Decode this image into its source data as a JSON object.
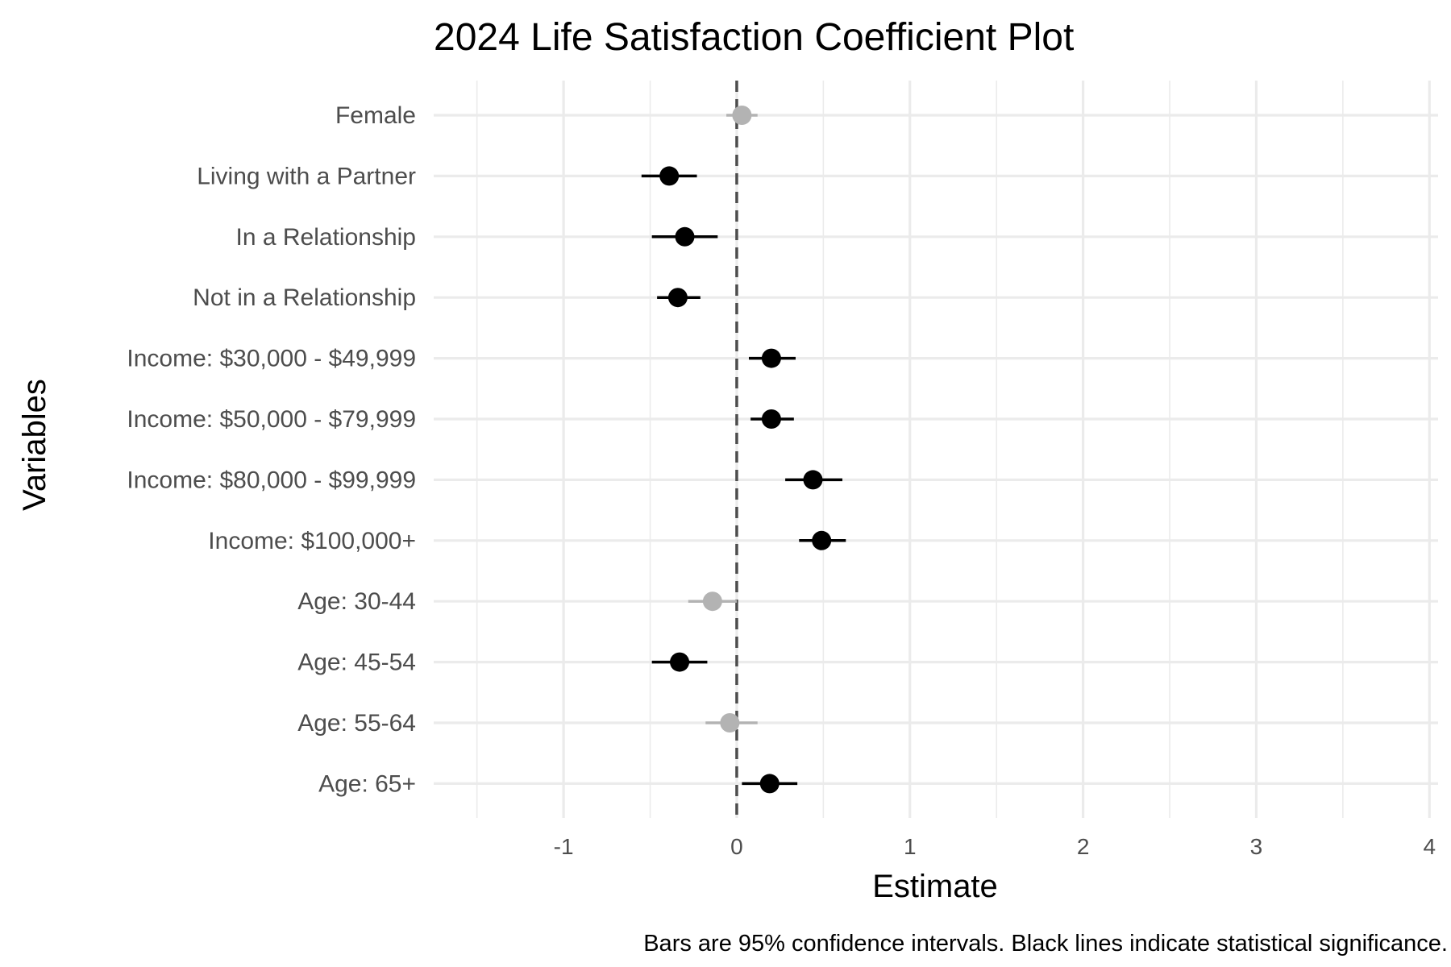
{
  "chart_data": {
    "type": "scatter",
    "title": "2024 Life Satisfaction Coefficient Plot",
    "xlabel": "Estimate",
    "ylabel": "Variables",
    "caption": "Bars are 95% confidence intervals. Black lines indicate statistical significance.",
    "xlim": [
      -1.75,
      4.05
    ],
    "x_ticks": [
      -1,
      0,
      1,
      2,
      3,
      4
    ],
    "x_tick_labels": [
      "-1",
      "0",
      "1",
      "2",
      "3",
      "4"
    ],
    "reference_line": 0,
    "grid": true,
    "colors": {
      "significant": "#000000",
      "not_significant": "#b3b3b3",
      "grid_major": "#ebebeb",
      "reference": "#4d4d4d"
    },
    "categories": [
      "Female",
      "Living with a Partner",
      "In a Relationship",
      "Not in a Relationship",
      "Income: $30,000 - $49,999",
      "Income: $50,000 - $79,999",
      "Income: $80,000 - $99,999",
      "Income: $100,000+",
      "Age: 30-44",
      "Age: 45-54",
      "Age: 55-64",
      "Age: 65+"
    ],
    "points": [
      {
        "variable": "Female",
        "estimate": 0.03,
        "ci_low": -0.06,
        "ci_high": 0.12,
        "significant": false
      },
      {
        "variable": "Living with a Partner",
        "estimate": -0.39,
        "ci_low": -0.55,
        "ci_high": -0.23,
        "significant": true
      },
      {
        "variable": "In a Relationship",
        "estimate": -0.3,
        "ci_low": -0.49,
        "ci_high": -0.11,
        "significant": true
      },
      {
        "variable": "Not in a Relationship",
        "estimate": -0.34,
        "ci_low": -0.46,
        "ci_high": -0.21,
        "significant": true
      },
      {
        "variable": "Income: $30,000 - $49,999",
        "estimate": 0.2,
        "ci_low": 0.07,
        "ci_high": 0.34,
        "significant": true
      },
      {
        "variable": "Income: $50,000 - $79,999",
        "estimate": 0.2,
        "ci_low": 0.08,
        "ci_high": 0.33,
        "significant": true
      },
      {
        "variable": "Income: $80,000 - $99,999",
        "estimate": 0.44,
        "ci_low": 0.28,
        "ci_high": 0.61,
        "significant": true
      },
      {
        "variable": "Income: $100,000+",
        "estimate": 0.49,
        "ci_low": 0.36,
        "ci_high": 0.63,
        "significant": true
      },
      {
        "variable": "Age: 30-44",
        "estimate": -0.14,
        "ci_low": -0.28,
        "ci_high": 0.0,
        "significant": false
      },
      {
        "variable": "Age: 45-54",
        "estimate": -0.33,
        "ci_low": -0.49,
        "ci_high": -0.17,
        "significant": true
      },
      {
        "variable": "Age: 55-64",
        "estimate": -0.04,
        "ci_low": -0.18,
        "ci_high": 0.12,
        "significant": false
      },
      {
        "variable": "Age: 65+",
        "estimate": 0.19,
        "ci_low": 0.03,
        "ci_high": 0.35,
        "significant": true
      }
    ]
  }
}
